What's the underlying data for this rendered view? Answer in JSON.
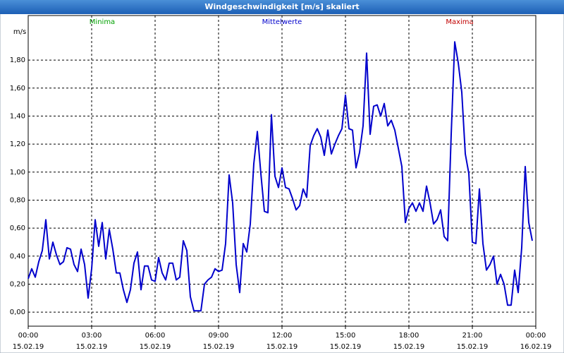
{
  "chart_data": {
    "type": "line",
    "title": "Windgeschwindigkeit [m/s] skaliert",
    "y_unit": "m/s",
    "headers": [
      {
        "text": "Minima",
        "color": "#00a000"
      },
      {
        "text": "Mittelwerte",
        "color": "#0000cc"
      },
      {
        "text": "Maxima",
        "color": "#c00000"
      }
    ],
    "x": [
      0,
      10,
      20,
      30,
      40,
      50,
      60,
      70,
      80,
      90,
      100,
      110,
      120,
      130,
      140,
      150,
      160,
      170,
      180,
      190,
      200,
      210,
      220,
      230,
      240,
      250,
      260,
      270,
      280,
      290,
      300,
      310,
      320,
      330,
      340,
      350,
      360,
      370,
      380,
      390,
      400,
      410,
      420,
      430,
      440,
      450,
      460,
      470,
      480,
      490,
      500,
      510,
      520,
      530,
      540,
      550,
      560,
      570,
      580,
      590,
      600,
      610,
      620,
      630,
      640,
      650,
      660,
      670,
      680,
      690,
      700,
      710,
      720,
      730,
      740,
      750,
      760,
      770,
      780,
      790,
      800,
      810,
      820,
      830,
      840,
      850,
      860,
      870,
      880,
      890,
      900,
      910,
      920,
      930,
      940,
      950,
      960,
      970,
      980,
      990,
      1000,
      1010,
      1020,
      1030,
      1040,
      1050,
      1060,
      1070,
      1080,
      1090,
      1100,
      1110,
      1120,
      1130,
      1140,
      1150,
      1160,
      1170,
      1180,
      1190,
      1200,
      1210,
      1220,
      1230,
      1240,
      1250,
      1260,
      1270,
      1280,
      1290,
      1300,
      1310,
      1320,
      1330,
      1340,
      1350,
      1360,
      1370,
      1380,
      1390,
      1400,
      1410,
      1420,
      1430
    ],
    "series": [
      {
        "name": "Mittelwerte",
        "color": "#0000cc",
        "values": [
          0.24,
          0.31,
          0.25,
          0.36,
          0.44,
          0.66,
          0.38,
          0.5,
          0.41,
          0.34,
          0.36,
          0.46,
          0.45,
          0.34,
          0.29,
          0.45,
          0.34,
          0.1,
          0.31,
          0.66,
          0.47,
          0.64,
          0.38,
          0.59,
          0.45,
          0.28,
          0.28,
          0.16,
          0.07,
          0.16,
          0.35,
          0.43,
          0.16,
          0.33,
          0.33,
          0.23,
          0.22,
          0.39,
          0.28,
          0.23,
          0.35,
          0.35,
          0.23,
          0.25,
          0.51,
          0.44,
          0.11,
          0.01,
          0.01,
          0.01,
          0.2,
          0.23,
          0.25,
          0.31,
          0.29,
          0.3,
          0.49,
          0.98,
          0.78,
          0.34,
          0.14,
          0.49,
          0.43,
          0.63,
          1.06,
          1.29,
          0.99,
          0.72,
          0.71,
          1.41,
          0.97,
          0.89,
          1.03,
          0.89,
          0.88,
          0.81,
          0.73,
          0.76,
          0.88,
          0.82,
          1.19,
          1.26,
          1.31,
          1.25,
          1.12,
          1.3,
          1.13,
          1.2,
          1.26,
          1.31,
          1.55,
          1.31,
          1.3,
          1.03,
          1.14,
          1.33,
          1.85,
          1.27,
          1.47,
          1.48,
          1.4,
          1.49,
          1.33,
          1.37,
          1.3,
          1.17,
          1.04,
          0.64,
          0.74,
          0.78,
          0.72,
          0.78,
          0.72,
          0.9,
          0.78,
          0.63,
          0.66,
          0.73,
          0.54,
          0.51,
          1.27,
          1.93,
          1.78,
          1.57,
          1.13,
          0.99,
          0.5,
          0.49,
          0.88,
          0.49,
          0.3,
          0.34,
          0.4,
          0.2,
          0.27,
          0.2,
          0.05,
          0.05,
          0.3,
          0.14,
          0.46,
          1.04,
          0.64,
          0.51
        ]
      }
    ],
    "xlim": [
      0,
      1440
    ],
    "xticks": [
      {
        "value": 0,
        "label": "00:00"
      },
      {
        "value": 180,
        "label": "03:00"
      },
      {
        "value": 360,
        "label": "06:00"
      },
      {
        "value": 540,
        "label": "09:00"
      },
      {
        "value": 720,
        "label": "12:00"
      },
      {
        "value": 900,
        "label": "15:00"
      },
      {
        "value": 1080,
        "label": "18:00"
      },
      {
        "value": 1260,
        "label": "21:00"
      },
      {
        "value": 1440,
        "label": "00:00"
      }
    ],
    "xtick_dates": [
      "15.02.19",
      "15.02.19",
      "15.02.19",
      "15.02.19",
      "15.02.19",
      "15.02.19",
      "15.02.19",
      "15.02.19",
      "16.02.19"
    ],
    "ylim": [
      -0.1,
      2.118
    ],
    "yticks": [
      {
        "value": 0,
        "label": "0,00"
      },
      {
        "value": 0.2,
        "label": "0,20"
      },
      {
        "value": 0.4,
        "label": "0,40"
      },
      {
        "value": 0.6,
        "label": "0,60"
      },
      {
        "value": 0.8,
        "label": "0,80"
      },
      {
        "value": 1.0,
        "label": "1,00"
      },
      {
        "value": 1.2,
        "label": "1,20"
      },
      {
        "value": 1.4,
        "label": "1,40"
      },
      {
        "value": 1.6,
        "label": "1,60"
      },
      {
        "value": 1.8,
        "label": "1,80"
      }
    ],
    "grid": true
  }
}
